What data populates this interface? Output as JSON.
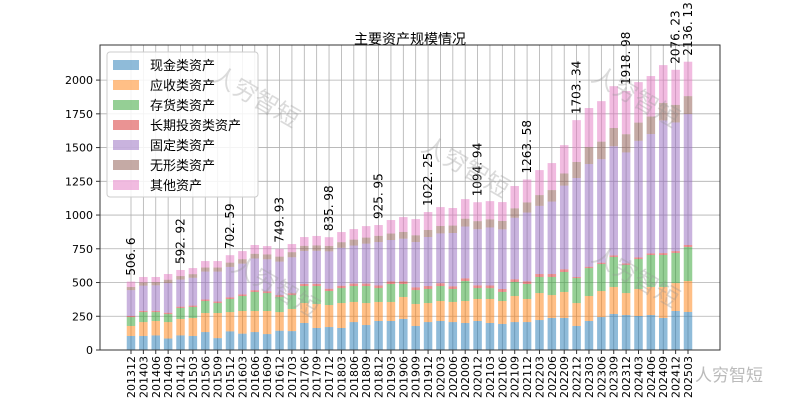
{
  "chart_data": {
    "type": "bar",
    "stacked": true,
    "title": "主要资产规模情况",
    "xlabel": "",
    "ylabel": "",
    "ylim": [
      0,
      2260
    ],
    "yticks": [
      0,
      250,
      500,
      750,
      1000,
      1250,
      1500,
      1750,
      2000
    ],
    "grid": true,
    "legend_position": "top-left",
    "categories": [
      "201312",
      "201403",
      "201406",
      "201409",
      "201412",
      "201503",
      "201506",
      "201509",
      "201512",
      "201603",
      "201606",
      "201609",
      "201612",
      "201703",
      "201706",
      "201709",
      "201712",
      "201803",
      "201806",
      "201809",
      "201812",
      "201903",
      "201906",
      "201909",
      "201912",
      "202003",
      "202006",
      "202009",
      "202012",
      "202103",
      "202106",
      "202109",
      "202112",
      "202203",
      "202206",
      "202209",
      "202212",
      "202303",
      "202306",
      "202309",
      "202312",
      "202403",
      "202406",
      "202409",
      "202412",
      "202503"
    ],
    "series": [
      {
        "name": "现金类资产",
        "color": "#1f77b4",
        "values": [
          104,
          104,
          108,
          85,
          108,
          104,
          133,
          88,
          138,
          121,
          133,
          118,
          143,
          140,
          200,
          163,
          170,
          163,
          207,
          185,
          215,
          215,
          230,
          178,
          207,
          215,
          207,
          200,
          215,
          200,
          193,
          207,
          207,
          222,
          237,
          237,
          178,
          215,
          244,
          267,
          259,
          252,
          259,
          237,
          289,
          282
        ]
      },
      {
        "name": "应收类资产",
        "color": "#ff7f0e",
        "values": [
          74,
          103,
          107,
          122,
          122,
          133,
          141,
          186,
          143,
          168,
          156,
          171,
          138,
          164,
          148,
          178,
          163,
          185,
          149,
          163,
          141,
          141,
          163,
          163,
          141,
          148,
          149,
          163,
          163,
          178,
          170,
          193,
          171,
          200,
          170,
          193,
          170,
          185,
          193,
          200,
          163,
          200,
          208,
          230,
          207,
          229
        ]
      },
      {
        "name": "存货类资产",
        "color": "#2ca02c",
        "values": [
          66,
          74,
          66,
          59,
          81,
          82,
          89,
          74,
          97,
          111,
          141,
          133,
          112,
          103,
          126,
          133,
          104,
          111,
          118,
          126,
          103,
          133,
          96,
          103,
          104,
          111,
          96,
          148,
          81,
          80,
          67,
          104,
          111,
          119,
          134,
          148,
          185,
          207,
          200,
          222,
          208,
          222,
          237,
          237,
          223,
          252
        ]
      },
      {
        "name": "长期投资类资产",
        "color": "#d62728",
        "values": [
          8,
          9,
          9,
          10,
          10,
          10,
          11,
          11,
          12,
          12,
          13,
          13,
          14,
          14,
          15,
          16,
          17,
          17,
          18,
          18,
          19,
          19,
          19,
          20,
          22,
          21,
          20,
          20,
          20,
          20,
          22,
          20,
          20,
          22,
          22,
          20,
          8,
          10,
          10,
          12,
          12,
          12,
          12,
          14,
          14,
          15
        ]
      },
      {
        "name": "固定类资产",
        "color": "#9467bd",
        "values": [
          191.6,
          187,
          189,
          220,
          200.92,
          206,
          207,
          222,
          225.59,
          228,
          235,
          237,
          247.93,
          266,
          245,
          245,
          276.98,
          281,
          282,
          296,
          321.95,
          307,
          317,
          336,
          363.25,
          369,
          395,
          384,
          415.94,
          430,
          442,
          456,
          509.58,
          505,
          537,
          620,
          733.34,
          761,
          767,
          809,
          821.98,
          864,
          884,
          983,
          953.23,
          970.13
        ]
      },
      {
        "name": "无形类资产",
        "color": "#8c564b",
        "values": [
          23,
          24,
          24,
          25,
          26,
          27,
          30,
          30,
          32,
          33,
          35,
          36,
          37,
          38,
          38,
          40,
          40,
          42,
          44,
          45,
          46,
          48,
          50,
          50,
          52,
          55,
          55,
          58,
          60,
          60,
          62,
          70,
          75,
          80,
          85,
          90,
          119,
          125,
          130,
          135,
          135,
          135,
          130,
          130,
          130,
          133
        ]
      },
      {
        "name": "其他资产",
        "color": "#e377c2",
        "values": [
          40,
          40,
          38,
          42,
          45,
          45,
          48,
          48,
          55,
          60,
          65,
          62,
          58,
          60,
          65,
          70,
          65,
          75,
          78,
          85,
          80,
          100,
          110,
          120,
          133,
          140,
          130,
          145,
          140,
          135,
          140,
          165,
          170,
          185,
          200,
          210,
          310,
          290,
          300,
          310,
          320,
          300,
          300,
          280,
          260,
          255
        ]
      }
    ],
    "data_labels": [
      {
        "category": "201312",
        "text": "506.6"
      },
      {
        "category": "201412",
        "text": "592.92"
      },
      {
        "category": "201512",
        "text": "702.59"
      },
      {
        "category": "201612",
        "text": "749.93"
      },
      {
        "category": "201712",
        "text": "835.98"
      },
      {
        "category": "201812",
        "text": "925.95"
      },
      {
        "category": "201912",
        "text": "1022.25"
      },
      {
        "category": "202012",
        "text": "1094.94"
      },
      {
        "category": "202112",
        "text": "1263.58"
      },
      {
        "category": "202212",
        "text": "1703.34"
      },
      {
        "category": "202312",
        "text": "1918.98"
      },
      {
        "category": "202412",
        "text": "2076.23"
      },
      {
        "category": "202503",
        "text": "2136.13"
      }
    ]
  },
  "watermark": "人穷智短"
}
